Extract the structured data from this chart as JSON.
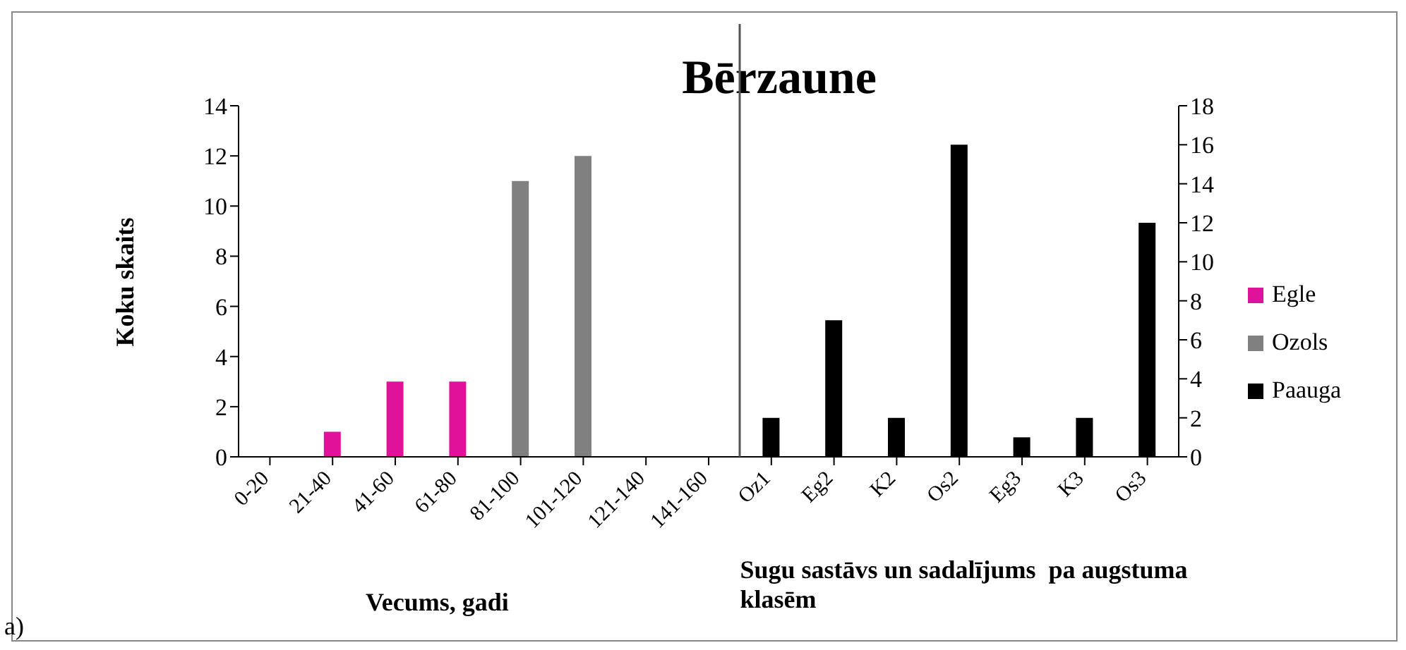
{
  "chart_data": {
    "type": "bar",
    "title": "Bērzaune",
    "xlabel": "Vecums, gadi",
    "ylabel": "Koku skaits",
    "annotations": [
      "Sugu sastāvs un sadalījums  pa augstuma klasēm",
      "a)"
    ],
    "categories": [
      "0-20",
      "21-40",
      "41-60",
      "61-80",
      "81-100",
      "101-120",
      "121-140",
      "141-160",
      "Oz1",
      "Eg2",
      "K2",
      "Os2",
      "Eg3",
      "K3",
      "Os3"
    ],
    "series": [
      {
        "name": "Egle",
        "color": "#e0129a",
        "values": [
          null,
          1,
          3,
          3,
          null,
          null,
          null,
          null,
          null,
          null,
          null,
          null,
          null,
          null,
          null
        ]
      },
      {
        "name": "Ozols",
        "color": "#808080",
        "values": [
          null,
          null,
          null,
          null,
          11,
          12,
          null,
          null,
          null,
          null,
          null,
          null,
          null,
          null,
          null
        ]
      },
      {
        "name": "Paauga",
        "color": "#000000",
        "axis": "y2",
        "values": [
          null,
          null,
          null,
          null,
          null,
          null,
          null,
          null,
          2,
          7,
          2,
          16,
          1,
          2,
          12
        ]
      }
    ],
    "ylim": [
      0,
      14
    ],
    "yticks": [
      0,
      2,
      4,
      6,
      8,
      10,
      12,
      14
    ],
    "y2lim": [
      0,
      18
    ],
    "y2ticks": [
      0,
      2,
      4,
      6,
      8,
      10,
      12,
      14,
      16,
      18
    ],
    "grid": false,
    "legend": "right"
  }
}
